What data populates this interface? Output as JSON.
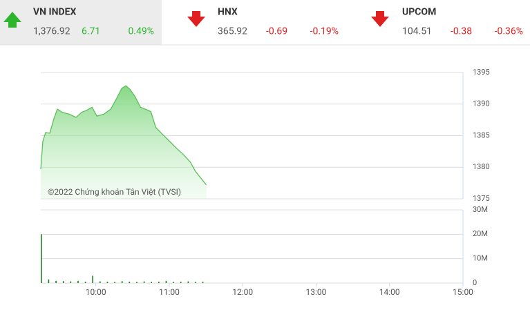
{
  "header": {
    "items": [
      {
        "name": "VN INDEX",
        "value": "1,376.92",
        "change": "6.71",
        "percent": "0.49%"
      },
      {
        "name": "HNX",
        "value": "365.92",
        "change": "-0.69",
        "percent": "-0.19%"
      },
      {
        "name": "UPCOM",
        "value": "104.51",
        "change": "-0.38",
        "percent": "-0.36%"
      }
    ]
  },
  "chart_data": [
    {
      "type": "line",
      "annotation": "©2022 Chứng khoán Tân Việt (TVSI)",
      "color": "#5cbf5c",
      "grid": true,
      "x": [
        9.25,
        9.278,
        9.316,
        9.373,
        9.429,
        9.476,
        9.542,
        9.637,
        9.731,
        9.807,
        9.873,
        9.948,
        10.014,
        10.108,
        10.203,
        10.297,
        10.354,
        10.41,
        10.467,
        10.533,
        10.608,
        10.675,
        10.75,
        10.816,
        10.91,
        11.005,
        11.099,
        11.193,
        11.288,
        11.354,
        11.429,
        11.505
      ],
      "values": [
        1379.7,
        1384.1,
        1385.5,
        1385.4,
        1387.7,
        1389.2,
        1388.7,
        1388.4,
        1387.9,
        1388.7,
        1389.0,
        1389.5,
        1388.1,
        1388.4,
        1389.2,
        1391.2,
        1392.5,
        1392.9,
        1392.3,
        1391.2,
        1389.5,
        1389.2,
        1388.8,
        1386.3,
        1385.2,
        1384.1,
        1383.0,
        1382.0,
        1380.8,
        1379.4,
        1378.3,
        1377.2
      ],
      "xlim": [
        9.25,
        15
      ],
      "ylim": [
        1375,
        1395
      ],
      "yticks": [
        1375,
        1380,
        1385,
        1390,
        1395
      ]
    },
    {
      "type": "bar",
      "color": "#1e7d1e",
      "grid": true,
      "x": [
        9.25,
        9.35,
        9.45,
        9.55,
        9.65,
        9.75,
        9.85,
        9.95,
        10.05,
        10.15,
        10.25,
        10.35,
        10.45,
        10.55,
        10.65,
        10.75,
        10.85,
        10.95,
        11.05,
        11.15,
        11.25,
        11.35,
        11.45
      ],
      "values": [
        20000000,
        1500000,
        900000,
        800000,
        700000,
        900000,
        600000,
        3000000,
        700000,
        600000,
        500000,
        800000,
        600000,
        500000,
        700000,
        500000,
        600000,
        900000,
        500000,
        600000,
        700000,
        500000,
        600000
      ],
      "xlim": [
        9.25,
        15
      ],
      "ylim": [
        0,
        30000000
      ],
      "yticks": [
        0,
        {
          "value": 10000000,
          "label": "10M"
        },
        {
          "value": 20000000,
          "label": "20M"
        },
        {
          "value": 30000000,
          "label": "30M"
        }
      ],
      "xticks": [
        {
          "value": 10,
          "label": "10:00"
        },
        {
          "value": 11,
          "label": "11:00"
        },
        {
          "value": 12,
          "label": "12:00"
        },
        {
          "value": 13,
          "label": "13:00"
        },
        {
          "value": 14,
          "label": "14:00"
        },
        {
          "value": 15,
          "label": "15:00"
        }
      ]
    }
  ]
}
